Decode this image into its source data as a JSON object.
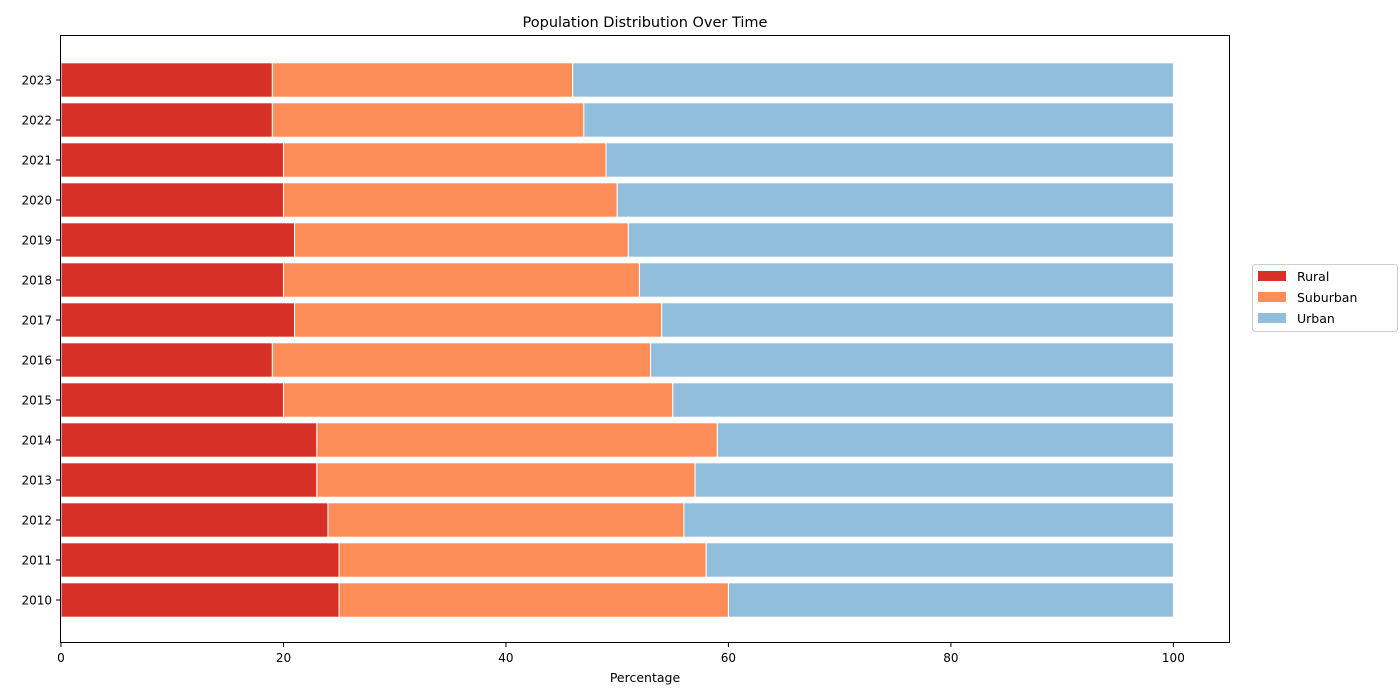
{
  "chart_data": {
    "type": "bar",
    "orientation": "horizontal",
    "stacked": true,
    "title": "Population Distribution Over Time",
    "xlabel": "Percentage",
    "ylabel": "",
    "xlim": [
      0,
      105
    ],
    "xticks": [
      0,
      20,
      40,
      60,
      80,
      100
    ],
    "xtick_labels": [
      "0",
      "20",
      "40",
      "60",
      "80",
      "100"
    ],
    "categories": [
      "2010",
      "2011",
      "2012",
      "2013",
      "2014",
      "2015",
      "2016",
      "2017",
      "2018",
      "2019",
      "2020",
      "2021",
      "2022",
      "2023"
    ],
    "series": [
      {
        "name": "Rural",
        "color": "#d73027",
        "values": [
          25,
          25,
          24,
          23,
          23,
          20,
          19,
          21,
          20,
          21,
          20,
          20,
          19,
          19
        ]
      },
      {
        "name": "Suburban",
        "color": "#fc8d59",
        "values": [
          35,
          33,
          32,
          34,
          36,
          35,
          34,
          33,
          32,
          30,
          30,
          29,
          28,
          27
        ]
      },
      {
        "name": "Urban",
        "color": "#91bfdb",
        "values": [
          40,
          42,
          44,
          43,
          41,
          45,
          47,
          46,
          48,
          49,
          50,
          51,
          53,
          54
        ]
      }
    ],
    "legend": {
      "position": "right",
      "entries": [
        "Rural",
        "Suburban",
        "Urban"
      ]
    },
    "grid": false
  }
}
